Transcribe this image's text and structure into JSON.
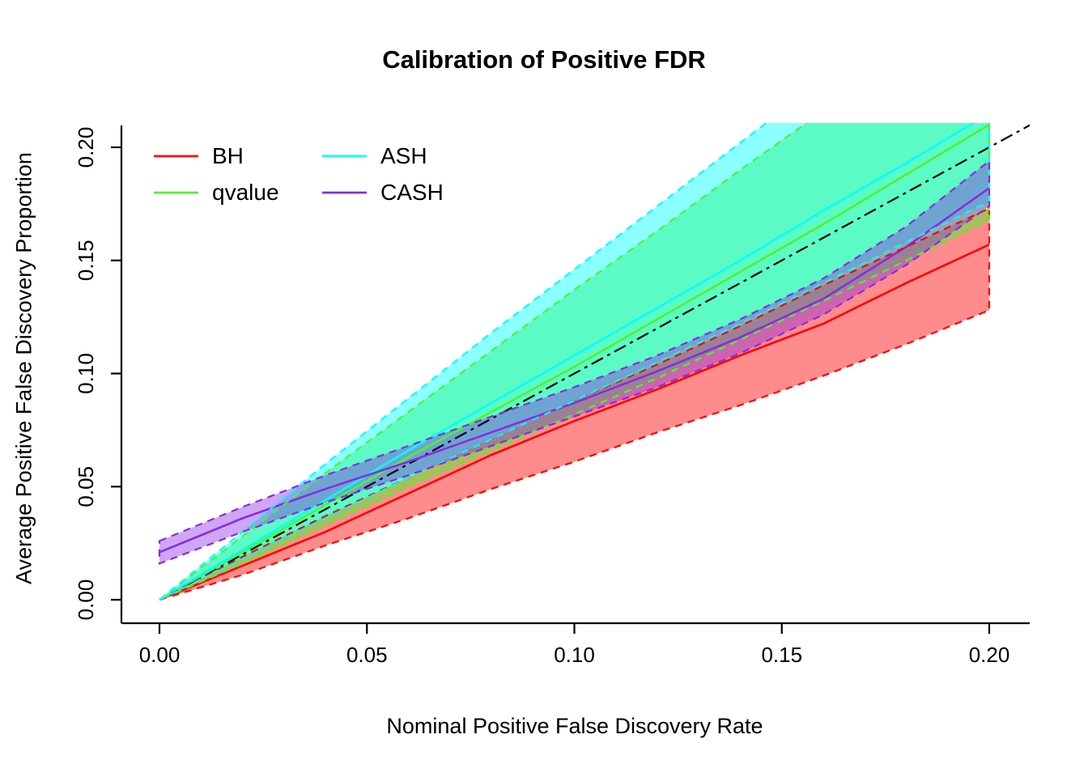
{
  "chart_data": {
    "type": "line",
    "title": "Calibration of Positive FDR",
    "xlabel": "Nominal Positive False Discovery Rate",
    "ylabel": "Average Positive False Discovery Proportion",
    "xlim": [
      0,
      0.2
    ],
    "ylim": [
      0,
      0.2
    ],
    "grid": false,
    "xticks": [
      "0.00",
      "0.05",
      "0.10",
      "0.15",
      "0.20"
    ],
    "yticks": [
      "0.00",
      "0.05",
      "0.10",
      "0.15",
      "0.20"
    ],
    "tick_values": [
      0,
      0.05,
      0.1,
      0.15,
      0.2
    ],
    "identity_line": {
      "label": "y = x",
      "color": "#000000",
      "style": "dashdot",
      "x": [
        0,
        0.21
      ],
      "y": [
        0,
        0.21
      ]
    },
    "x": [
      0,
      0.02,
      0.04,
      0.06,
      0.08,
      0.1,
      0.12,
      0.14,
      0.16,
      0.18,
      0.2
    ],
    "series": [
      {
        "name": "BH",
        "color": "#FF0000",
        "fill_opacity": 0.45,
        "mean": [
          0,
          0.015,
          0.03,
          0.047,
          0.064,
          0.079,
          0.093,
          0.108,
          0.122,
          0.14,
          0.157
        ],
        "lower": [
          0,
          0.011,
          0.024,
          0.036,
          0.049,
          0.061,
          0.074,
          0.086,
          0.099,
          0.113,
          0.128
        ],
        "upper": [
          0,
          0.019,
          0.037,
          0.054,
          0.071,
          0.088,
          0.104,
          0.121,
          0.139,
          0.156,
          0.173
        ]
      },
      {
        "name": "qvalue",
        "color": "#52F22B",
        "fill_opacity": 0.5,
        "mean": [
          0,
          0.021,
          0.042,
          0.063,
          0.083,
          0.103,
          0.124,
          0.145,
          0.166,
          0.188,
          0.21
        ],
        "lower": [
          0,
          0.016,
          0.033,
          0.05,
          0.066,
          0.082,
          0.098,
          0.115,
          0.132,
          0.15,
          0.168
        ],
        "upper": [
          0,
          0.028,
          0.056,
          0.083,
          0.11,
          0.137,
          0.163,
          0.19,
          0.216,
          0.243,
          0.27
        ]
      },
      {
        "name": "ASH",
        "color": "#00FFFF",
        "fill_opacity": 0.45,
        "mean": [
          0,
          0.022,
          0.044,
          0.066,
          0.087,
          0.108,
          0.129,
          0.15,
          0.172,
          0.193,
          0.215
        ],
        "lower": [
          0,
          0.018,
          0.036,
          0.054,
          0.071,
          0.088,
          0.105,
          0.122,
          0.14,
          0.158,
          0.176
        ],
        "upper": [
          0,
          0.03,
          0.06,
          0.089,
          0.118,
          0.146,
          0.174,
          0.202,
          0.23,
          0.258,
          0.286
        ]
      },
      {
        "name": "CASH",
        "color": "#8A2BE2",
        "fill_opacity": 0.42,
        "mean": [
          0.021,
          0.036,
          0.049,
          0.061,
          0.074,
          0.087,
          0.101,
          0.116,
          0.133,
          0.156,
          0.182
        ],
        "lower": [
          0.016,
          0.03,
          0.043,
          0.055,
          0.068,
          0.081,
          0.094,
          0.109,
          0.126,
          0.148,
          0.174
        ],
        "upper": [
          0.026,
          0.041,
          0.055,
          0.068,
          0.081,
          0.094,
          0.108,
          0.124,
          0.142,
          0.165,
          0.194
        ]
      }
    ],
    "legend": {
      "position": "top-left",
      "columns": 2,
      "entries": [
        {
          "label": "BH",
          "color": "#FF0000"
        },
        {
          "label": "qvalue",
          "color": "#52F22B"
        },
        {
          "label": "ASH",
          "color": "#00FFFF"
        },
        {
          "label": "CASH",
          "color": "#8A2BE2"
        }
      ]
    }
  }
}
